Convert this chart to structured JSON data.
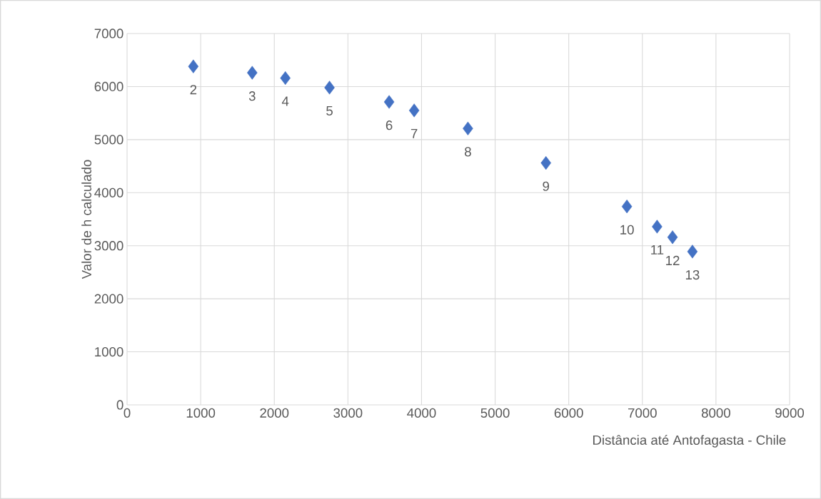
{
  "chart_data": {
    "type": "scatter",
    "xlabel": "Distância até Antofagasta - Chile",
    "ylabel": "Valor de h calculado",
    "x": [
      900,
      1700,
      2150,
      2750,
      3560,
      3900,
      4630,
      5690,
      6790,
      7200,
      7410,
      7680
    ],
    "values": [
      6380,
      6260,
      6160,
      5980,
      5710,
      5550,
      5210,
      4560,
      3740,
      3360,
      3160,
      2890
    ],
    "color": "#4472c4",
    "marker": "diamond",
    "grid": true,
    "xlim": [
      0,
      9000
    ],
    "xticks": [
      0,
      1000,
      2000,
      3000,
      4000,
      5000,
      6000,
      7000,
      8000,
      9000
    ],
    "ylim": [
      0,
      7000
    ],
    "yticks": [
      0,
      1000,
      2000,
      3000,
      4000,
      5000,
      6000,
      7000
    ],
    "annotations": [
      {
        "text": "2",
        "x": 900,
        "y": 6380
      },
      {
        "text": "3",
        "x": 1700,
        "y": 6260
      },
      {
        "text": "4",
        "x": 2150,
        "y": 6160
      },
      {
        "text": "5",
        "x": 2750,
        "y": 5980
      },
      {
        "text": "6",
        "x": 3560,
        "y": 5710
      },
      {
        "text": "7",
        "x": 3900,
        "y": 5550
      },
      {
        "text": "8",
        "x": 4630,
        "y": 5210
      },
      {
        "text": "9",
        "x": 5690,
        "y": 4560
      },
      {
        "text": "10",
        "x": 6790,
        "y": 3740
      },
      {
        "text": "11",
        "x": 7200,
        "y": 3360
      },
      {
        "text": "12",
        "x": 7410,
        "y": 3160
      },
      {
        "text": "13",
        "x": 7680,
        "y": 2890
      }
    ]
  }
}
